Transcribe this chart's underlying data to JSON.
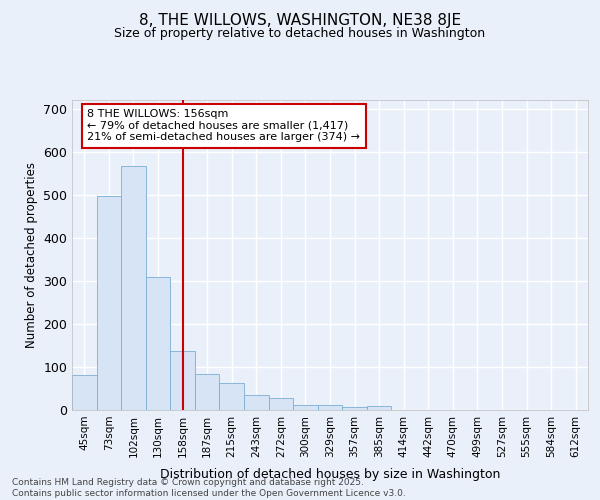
{
  "title": "8, THE WILLOWS, WASHINGTON, NE38 8JE",
  "subtitle": "Size of property relative to detached houses in Washington",
  "xlabel": "Distribution of detached houses by size in Washington",
  "ylabel": "Number of detached properties",
  "bar_color": "#d6e4f5",
  "bar_edge_color": "#7bafd4",
  "categories": [
    "45sqm",
    "73sqm",
    "102sqm",
    "130sqm",
    "158sqm",
    "187sqm",
    "215sqm",
    "243sqm",
    "272sqm",
    "300sqm",
    "329sqm",
    "357sqm",
    "385sqm",
    "414sqm",
    "442sqm",
    "470sqm",
    "499sqm",
    "527sqm",
    "555sqm",
    "584sqm",
    "612sqm"
  ],
  "values": [
    82,
    497,
    567,
    310,
    138,
    84,
    63,
    35,
    28,
    12,
    11,
    6,
    10,
    0,
    0,
    0,
    0,
    0,
    0,
    0,
    0
  ],
  "vline_x": 4,
  "vline_color": "#cc0000",
  "annotation_text": "8 THE WILLOWS: 156sqm\n← 79% of detached houses are smaller (1,417)\n21% of semi-detached houses are larger (374) →",
  "annotation_box_color": "#ffffff",
  "annotation_box_edge": "#cc0000",
  "ylim": [
    0,
    720
  ],
  "yticks": [
    0,
    100,
    200,
    300,
    400,
    500,
    600,
    700
  ],
  "footnote": "Contains HM Land Registry data © Crown copyright and database right 2025.\nContains public sector information licensed under the Open Government Licence v3.0.",
  "bg_color": "#eaf0fa",
  "grid_color": "#ffffff",
  "title_fontsize": 11,
  "subtitle_fontsize": 9
}
